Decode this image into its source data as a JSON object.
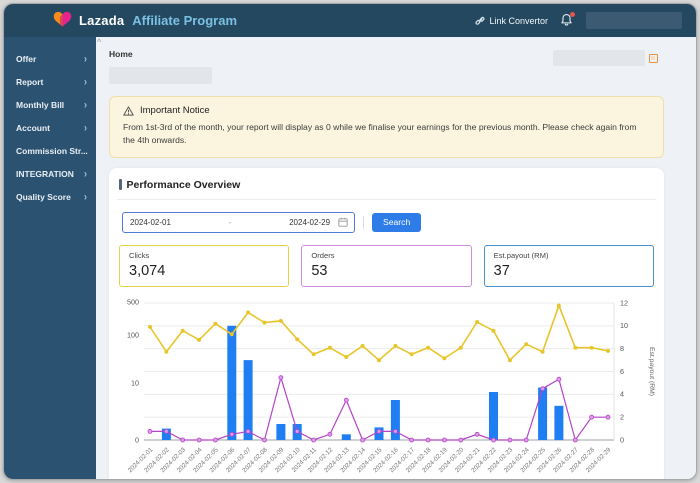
{
  "header": {
    "brand": "Lazada",
    "brand_suffix": "Affiliate Program",
    "link_convertor_label": "Link Convertor",
    "icons": [
      "lazada-heart-logo",
      "link-icon",
      "bell-icon",
      "notification-dot"
    ]
  },
  "sidebar": {
    "items": [
      {
        "label": "Offer",
        "chevron": true
      },
      {
        "label": "Report",
        "chevron": true
      },
      {
        "label": "Monthly Bill",
        "chevron": true
      },
      {
        "label": "Account",
        "chevron": true
      },
      {
        "label": "Commission Str...",
        "chevron": false
      },
      {
        "label": "INTEGRATION",
        "chevron": true
      },
      {
        "label": "Quality Score",
        "chevron": true
      }
    ]
  },
  "breadcrumb": "Home",
  "notice": {
    "title": "Important Notice",
    "icon": "warning-triangle-icon",
    "body": "From 1st-3rd of the month, your report will display as 0 while we finalise your earnings for the previous month. Please check again from the 4th onwards."
  },
  "performance": {
    "title": "Performance Overview",
    "date_from": "2024-02-01",
    "date_separator": "-",
    "date_to": "2024-02-29",
    "calendar_icon": "calendar-icon",
    "search_label": "Search",
    "cards": [
      {
        "label": "Clicks",
        "value": "3,074",
        "border_color": "#e7d34b"
      },
      {
        "label": "Orders",
        "value": "53",
        "border_color": "#cd8fdd"
      },
      {
        "label": "Est.payout (RM)",
        "value": "37",
        "border_color": "#4a90c9"
      }
    ]
  },
  "chart_data": {
    "type": "bar+line combo",
    "categories": [
      "2024-02-01",
      "2024-02-02",
      "2024-02-03",
      "2024-02-04",
      "2024-02-05",
      "2024-02-06",
      "2024-02-07",
      "2024-02-08",
      "2024-02-09",
      "2024-02-10",
      "2024-02-11",
      "2024-02-12",
      "2024-02-13",
      "2024-02-14",
      "2024-02-15",
      "2024-02-16",
      "2024-02-17",
      "2024-02-18",
      "2024-02-19",
      "2024-02-20",
      "2024-02-21",
      "2024-02-22",
      "2024-02-23",
      "2024-02-24",
      "2024-02-25",
      "2024-02-26",
      "2024-02-27",
      "2024-02-28",
      "2024-02-29"
    ],
    "series": [
      {
        "name": "Clicks",
        "type": "line",
        "axis": "left-log",
        "color": "#e8c52a",
        "values": [
          150,
          45,
          125,
          80,
          175,
          105,
          300,
          185,
          200,
          83,
          40,
          55,
          35,
          60,
          30,
          60,
          40,
          55,
          33,
          55,
          190,
          125,
          30,
          65,
          45,
          420,
          55,
          55,
          47
        ]
      },
      {
        "name": "Orders",
        "type": "line",
        "axis": "left-log",
        "color": "#b444c9",
        "values": [
          1.5,
          1.5,
          0,
          0,
          0,
          1,
          1.5,
          0,
          13,
          1.5,
          0,
          1,
          7,
          0,
          1.5,
          1.5,
          0,
          0,
          0,
          0,
          1,
          0,
          0,
          0,
          9,
          12,
          0,
          4,
          4
        ]
      },
      {
        "name": "Est.payout (RM)",
        "type": "bar",
        "axis": "right-linear",
        "color": "#1f7ff2",
        "values": [
          0,
          1,
          0,
          0,
          0,
          10,
          7,
          0,
          1.4,
          1.4,
          0,
          0,
          0.5,
          0,
          1.1,
          3.5,
          0,
          0,
          0,
          0,
          0,
          4.2,
          0,
          0,
          4.6,
          3,
          0,
          0,
          0
        ]
      }
    ],
    "left_axis": {
      "scale": "log (0,10,100,500)",
      "ticks": [
        "500",
        "100",
        "10",
        "0"
      ]
    },
    "right_axis": {
      "label": "Est.payout (RM)",
      "ticks": [
        0,
        2,
        4,
        6,
        8,
        10,
        12
      ],
      "range": [
        0,
        12
      ]
    },
    "grid": true,
    "legend": "none"
  }
}
